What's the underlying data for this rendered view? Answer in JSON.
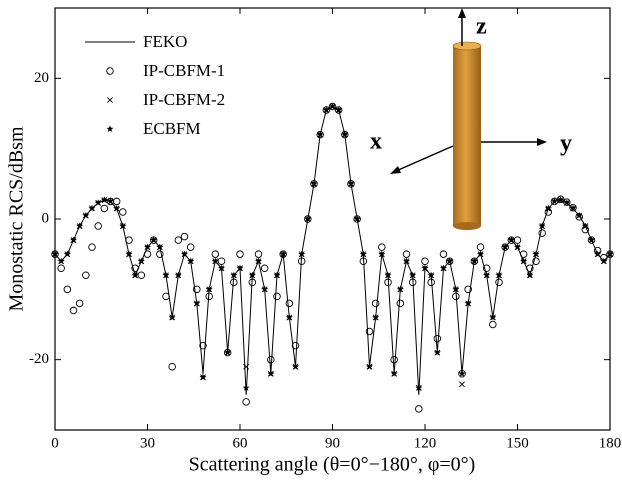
{
  "chart_data": {
    "type": "line",
    "xlabel": "Scattering angle (θ=0°−180°, φ=0°)",
    "ylabel": "Monostatic RCS/dBsm",
    "xlim": [
      0,
      180
    ],
    "xticks": [
      0,
      30,
      60,
      90,
      120,
      150,
      180
    ],
    "ylim": [
      -30,
      30
    ],
    "yticks": [
      -20,
      0,
      20
    ],
    "legend": "upper left",
    "annotations": [
      "z",
      "x",
      "y"
    ],
    "x": [
      0,
      2,
      4,
      6,
      8,
      10,
      12,
      14,
      16,
      18,
      20,
      22,
      24,
      26,
      28,
      30,
      32,
      34,
      36,
      38,
      40,
      42,
      44,
      46,
      48,
      50,
      52,
      54,
      56,
      58,
      60,
      62,
      64,
      66,
      68,
      70,
      72,
      74,
      76,
      78,
      80,
      82,
      84,
      86,
      88,
      90,
      92,
      94,
      96,
      98,
      100,
      102,
      104,
      106,
      108,
      110,
      112,
      114,
      116,
      118,
      120,
      122,
      124,
      126,
      128,
      130,
      132,
      134,
      136,
      138,
      140,
      142,
      144,
      146,
      148,
      150,
      152,
      154,
      156,
      158,
      160,
      162,
      164,
      166,
      168,
      170,
      172,
      174,
      176,
      178,
      180
    ],
    "series": [
      {
        "name": "FEKO",
        "color": "#000000",
        "marker": "line",
        "values": [
          -5,
          -6,
          -5,
          -3,
          -1,
          0.5,
          1.5,
          2.3,
          2.7,
          2.5,
          1.5,
          -1,
          -5,
          -8,
          -6,
          -4,
          -3,
          -4,
          -8,
          -14,
          -8,
          -5,
          -6,
          -12,
          -22,
          -10,
          -6,
          -7,
          -19,
          -8,
          -7,
          -25,
          -8,
          -6,
          -10,
          -22,
          -8,
          -5,
          -14,
          -21,
          -5,
          0,
          5,
          12,
          15.5,
          16,
          15.5,
          12,
          5,
          0,
          -5,
          -21,
          -14,
          -5,
          -8,
          -22,
          -10,
          -6,
          -8,
          -25,
          -7,
          -8,
          -19,
          -7,
          -6,
          -10,
          -22,
          -12,
          -6,
          -5,
          -8,
          -14,
          -8,
          -4,
          -3,
          -4,
          -6,
          -8,
          -5,
          -1,
          1.5,
          2.5,
          2.7,
          2.3,
          1.5,
          0.5,
          -1,
          -3,
          -5,
          -6,
          -5
        ]
      },
      {
        "name": "IP-CBFM-1",
        "color": "#000000",
        "marker": "circle",
        "values": [
          -5,
          -7,
          -10,
          -13,
          -12,
          -8,
          -4,
          -1,
          1.5,
          2.5,
          2.5,
          1,
          -3,
          -7,
          -8,
          -5,
          -3,
          -5,
          -11,
          -21,
          -3,
          -2.5,
          -4,
          -10,
          -18,
          -11,
          -5,
          -6,
          -19,
          -9,
          -5,
          -26,
          -9,
          -5,
          -7,
          -20,
          -11,
          -5,
          -12,
          -18,
          -6,
          0,
          5,
          12,
          15.5,
          16,
          15.5,
          12,
          5,
          0,
          -6,
          -16,
          -12,
          -4,
          -9,
          -20,
          -12,
          -5,
          -9,
          -27,
          -6,
          -9,
          -17,
          -5,
          -6,
          -11,
          -22,
          -10,
          -6,
          -4,
          -7,
          -15,
          -9,
          -4,
          -3,
          -3,
          -5,
          -7,
          -6,
          -2,
          1,
          2.5,
          2.8,
          2.4,
          1.6,
          0.3,
          -1.5,
          -3,
          -4.5,
          -5.5,
          -5
        ]
      },
      {
        "name": "IP-CBFM-2",
        "color": "#000000",
        "marker": "cross",
        "values": [
          -5,
          -6,
          -5,
          -3,
          -1,
          0.5,
          1.5,
          2.3,
          2.7,
          2.5,
          1.5,
          -1,
          -5,
          -8,
          -6,
          -4,
          -3,
          -4,
          -8,
          -14,
          -8,
          -5,
          -6,
          -12,
          -22.5,
          -10,
          -6,
          -7,
          -19,
          -8,
          -7,
          -21,
          -8,
          -6,
          -10,
          -22,
          -8,
          -5,
          -14,
          -21,
          -5,
          0,
          5,
          12,
          15.5,
          16,
          15.5,
          12,
          5,
          0,
          -5,
          -21,
          -14,
          -5,
          -8,
          -22,
          -10,
          -6,
          -8,
          -24,
          -7,
          -8,
          -19,
          -7,
          -6,
          -10,
          -23.5,
          -12,
          -6,
          -5,
          -8,
          -14,
          -8,
          -4,
          -3,
          -4,
          -6,
          -8,
          -5,
          -1,
          1.5,
          2.5,
          2.7,
          2.3,
          1.5,
          0.5,
          -1,
          -3,
          -5,
          -6,
          -5
        ]
      },
      {
        "name": "ECBFM",
        "color": "#000000",
        "marker": "star",
        "values": [
          -5,
          -6,
          -5,
          -3,
          -1,
          0.5,
          1.5,
          2.3,
          2.7,
          2.5,
          1.5,
          -1,
          -5,
          -8,
          -6,
          -4,
          -3,
          -4,
          -8,
          -14,
          -8,
          -5,
          -6,
          -12,
          -22.5,
          -10,
          -6,
          -7,
          -19,
          -8,
          -7,
          -24,
          -8,
          -6,
          -10,
          -22,
          -8,
          -5,
          -14,
          -21,
          -5,
          0,
          5,
          12,
          15.5,
          16,
          15.5,
          12,
          5,
          0,
          -5,
          -21,
          -14,
          -5,
          -8,
          -22,
          -10,
          -6,
          -8,
          -24,
          -7,
          -8,
          -19,
          -7,
          -6,
          -10,
          -22,
          -12,
          -6,
          -5,
          -8,
          -14,
          -8,
          -4,
          -3,
          -4,
          -6,
          -8,
          -5,
          -1,
          1.5,
          2.5,
          2.7,
          2.3,
          1.5,
          0.5,
          -1,
          -3,
          -5,
          -6,
          -5
        ]
      }
    ]
  }
}
